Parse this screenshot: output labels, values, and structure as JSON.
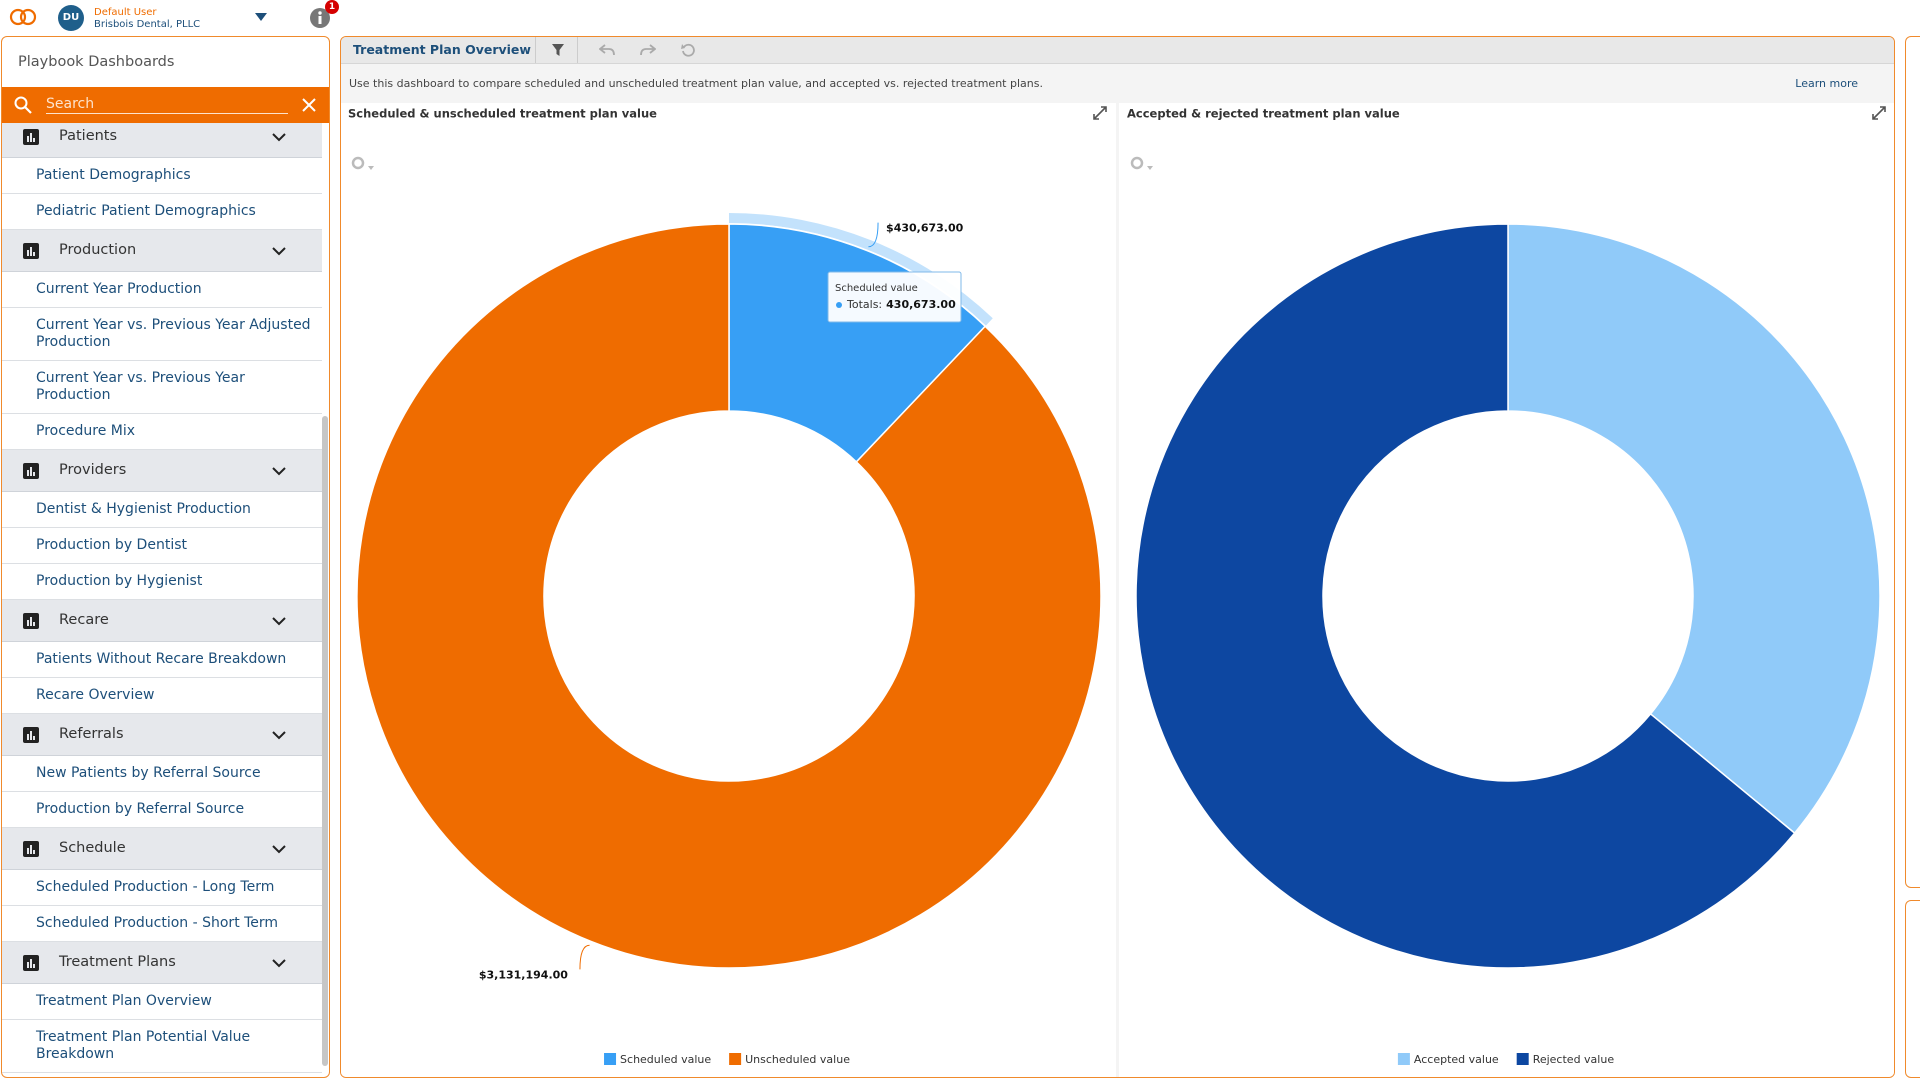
{
  "header": {
    "user_initials": "DU",
    "user_name": "Default User",
    "organization": "Brisbois Dental, PLLC",
    "notification_count": 1
  },
  "sidebar": {
    "title": "Playbook Dashboards",
    "search_placeholder": "Search",
    "groups": [
      {
        "title": "Patients",
        "items": [
          "Patient Demographics",
          "Pediatric Patient Demographics"
        ]
      },
      {
        "title": "Production",
        "items": [
          "Current Year Production",
          "Current Year vs. Previous Year Adjusted Production",
          "Current Year vs. Previous Year Production",
          "Procedure Mix"
        ]
      },
      {
        "title": "Providers",
        "items": [
          "Dentist & Hygienist Production",
          "Production by Dentist",
          "Production by Hygienist"
        ]
      },
      {
        "title": "Recare",
        "items": [
          "Patients Without Recare Breakdown",
          "Recare Overview"
        ]
      },
      {
        "title": "Referrals",
        "items": [
          "New Patients by Referral Source",
          "Production by Referral Source"
        ]
      },
      {
        "title": "Schedule",
        "items": [
          "Scheduled Production - Long Term",
          "Scheduled Production - Short Term"
        ]
      },
      {
        "title": "Treatment Plans",
        "items": [
          "Treatment Plan Overview",
          "Treatment Plan Potential Value Breakdown"
        ]
      }
    ]
  },
  "dashboard": {
    "title": "Treatment Plan Overview",
    "description": "Use this dashboard to compare scheduled and unscheduled treatment plan value, and accepted vs. rejected treatment plans.",
    "learn_more": "Learn more"
  },
  "chart_data": [
    {
      "type": "pie",
      "title": "Scheduled & unscheduled treatment plan value",
      "categories": [
        "Scheduled value",
        "Unscheduled value"
      ],
      "values": [
        430673,
        3131194
      ],
      "value_labels": [
        "$430,673.00",
        "$3,131,194.00"
      ],
      "colors": [
        "#379ff5",
        "#ef6c00"
      ],
      "tooltip": {
        "label": "Totals:",
        "value": "430,673.00"
      }
    },
    {
      "type": "pie",
      "title": "Accepted & rejected treatment plan value",
      "categories": [
        "Accepted value",
        "Rejected value"
      ],
      "values": [
        36,
        64
      ],
      "colors": [
        "#90caf9",
        "#0d47a1"
      ]
    }
  ]
}
